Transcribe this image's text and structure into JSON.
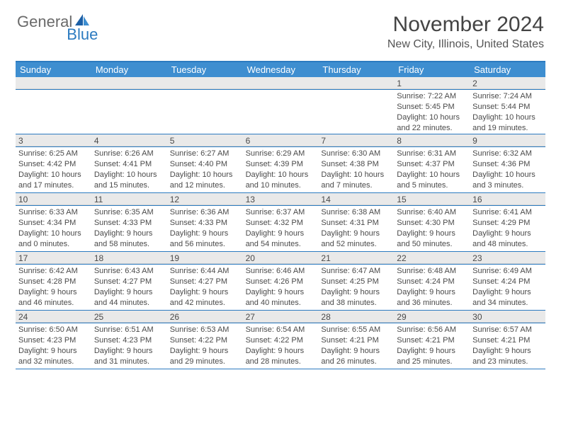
{
  "logo": {
    "part1": "General",
    "part2": "Blue"
  },
  "title": "November 2024",
  "location": "New City, Illinois, United States",
  "colors": {
    "header_bg": "#3e8ed0",
    "border": "#2c7bc0",
    "date_bg": "#e9e9e9",
    "text": "#4a4a4a",
    "logo_gray": "#6a6a6a",
    "logo_blue": "#2c7bc0"
  },
  "day_names": [
    "Sunday",
    "Monday",
    "Tuesday",
    "Wednesday",
    "Thursday",
    "Friday",
    "Saturday"
  ],
  "weeks": [
    [
      null,
      null,
      null,
      null,
      null,
      {
        "date": "1",
        "sunrise": "Sunrise: 7:22 AM",
        "sunset": "Sunset: 5:45 PM",
        "daylight1": "Daylight: 10 hours",
        "daylight2": "and 22 minutes."
      },
      {
        "date": "2",
        "sunrise": "Sunrise: 7:24 AM",
        "sunset": "Sunset: 5:44 PM",
        "daylight1": "Daylight: 10 hours",
        "daylight2": "and 19 minutes."
      }
    ],
    [
      {
        "date": "3",
        "sunrise": "Sunrise: 6:25 AM",
        "sunset": "Sunset: 4:42 PM",
        "daylight1": "Daylight: 10 hours",
        "daylight2": "and 17 minutes."
      },
      {
        "date": "4",
        "sunrise": "Sunrise: 6:26 AM",
        "sunset": "Sunset: 4:41 PM",
        "daylight1": "Daylight: 10 hours",
        "daylight2": "and 15 minutes."
      },
      {
        "date": "5",
        "sunrise": "Sunrise: 6:27 AM",
        "sunset": "Sunset: 4:40 PM",
        "daylight1": "Daylight: 10 hours",
        "daylight2": "and 12 minutes."
      },
      {
        "date": "6",
        "sunrise": "Sunrise: 6:29 AM",
        "sunset": "Sunset: 4:39 PM",
        "daylight1": "Daylight: 10 hours",
        "daylight2": "and 10 minutes."
      },
      {
        "date": "7",
        "sunrise": "Sunrise: 6:30 AM",
        "sunset": "Sunset: 4:38 PM",
        "daylight1": "Daylight: 10 hours",
        "daylight2": "and 7 minutes."
      },
      {
        "date": "8",
        "sunrise": "Sunrise: 6:31 AM",
        "sunset": "Sunset: 4:37 PM",
        "daylight1": "Daylight: 10 hours",
        "daylight2": "and 5 minutes."
      },
      {
        "date": "9",
        "sunrise": "Sunrise: 6:32 AM",
        "sunset": "Sunset: 4:36 PM",
        "daylight1": "Daylight: 10 hours",
        "daylight2": "and 3 minutes."
      }
    ],
    [
      {
        "date": "10",
        "sunrise": "Sunrise: 6:33 AM",
        "sunset": "Sunset: 4:34 PM",
        "daylight1": "Daylight: 10 hours",
        "daylight2": "and 0 minutes."
      },
      {
        "date": "11",
        "sunrise": "Sunrise: 6:35 AM",
        "sunset": "Sunset: 4:33 PM",
        "daylight1": "Daylight: 9 hours",
        "daylight2": "and 58 minutes."
      },
      {
        "date": "12",
        "sunrise": "Sunrise: 6:36 AM",
        "sunset": "Sunset: 4:33 PM",
        "daylight1": "Daylight: 9 hours",
        "daylight2": "and 56 minutes."
      },
      {
        "date": "13",
        "sunrise": "Sunrise: 6:37 AM",
        "sunset": "Sunset: 4:32 PM",
        "daylight1": "Daylight: 9 hours",
        "daylight2": "and 54 minutes."
      },
      {
        "date": "14",
        "sunrise": "Sunrise: 6:38 AM",
        "sunset": "Sunset: 4:31 PM",
        "daylight1": "Daylight: 9 hours",
        "daylight2": "and 52 minutes."
      },
      {
        "date": "15",
        "sunrise": "Sunrise: 6:40 AM",
        "sunset": "Sunset: 4:30 PM",
        "daylight1": "Daylight: 9 hours",
        "daylight2": "and 50 minutes."
      },
      {
        "date": "16",
        "sunrise": "Sunrise: 6:41 AM",
        "sunset": "Sunset: 4:29 PM",
        "daylight1": "Daylight: 9 hours",
        "daylight2": "and 48 minutes."
      }
    ],
    [
      {
        "date": "17",
        "sunrise": "Sunrise: 6:42 AM",
        "sunset": "Sunset: 4:28 PM",
        "daylight1": "Daylight: 9 hours",
        "daylight2": "and 46 minutes."
      },
      {
        "date": "18",
        "sunrise": "Sunrise: 6:43 AM",
        "sunset": "Sunset: 4:27 PM",
        "daylight1": "Daylight: 9 hours",
        "daylight2": "and 44 minutes."
      },
      {
        "date": "19",
        "sunrise": "Sunrise: 6:44 AM",
        "sunset": "Sunset: 4:27 PM",
        "daylight1": "Daylight: 9 hours",
        "daylight2": "and 42 minutes."
      },
      {
        "date": "20",
        "sunrise": "Sunrise: 6:46 AM",
        "sunset": "Sunset: 4:26 PM",
        "daylight1": "Daylight: 9 hours",
        "daylight2": "and 40 minutes."
      },
      {
        "date": "21",
        "sunrise": "Sunrise: 6:47 AM",
        "sunset": "Sunset: 4:25 PM",
        "daylight1": "Daylight: 9 hours",
        "daylight2": "and 38 minutes."
      },
      {
        "date": "22",
        "sunrise": "Sunrise: 6:48 AM",
        "sunset": "Sunset: 4:24 PM",
        "daylight1": "Daylight: 9 hours",
        "daylight2": "and 36 minutes."
      },
      {
        "date": "23",
        "sunrise": "Sunrise: 6:49 AM",
        "sunset": "Sunset: 4:24 PM",
        "daylight1": "Daylight: 9 hours",
        "daylight2": "and 34 minutes."
      }
    ],
    [
      {
        "date": "24",
        "sunrise": "Sunrise: 6:50 AM",
        "sunset": "Sunset: 4:23 PM",
        "daylight1": "Daylight: 9 hours",
        "daylight2": "and 32 minutes."
      },
      {
        "date": "25",
        "sunrise": "Sunrise: 6:51 AM",
        "sunset": "Sunset: 4:23 PM",
        "daylight1": "Daylight: 9 hours",
        "daylight2": "and 31 minutes."
      },
      {
        "date": "26",
        "sunrise": "Sunrise: 6:53 AM",
        "sunset": "Sunset: 4:22 PM",
        "daylight1": "Daylight: 9 hours",
        "daylight2": "and 29 minutes."
      },
      {
        "date": "27",
        "sunrise": "Sunrise: 6:54 AM",
        "sunset": "Sunset: 4:22 PM",
        "daylight1": "Daylight: 9 hours",
        "daylight2": "and 28 minutes."
      },
      {
        "date": "28",
        "sunrise": "Sunrise: 6:55 AM",
        "sunset": "Sunset: 4:21 PM",
        "daylight1": "Daylight: 9 hours",
        "daylight2": "and 26 minutes."
      },
      {
        "date": "29",
        "sunrise": "Sunrise: 6:56 AM",
        "sunset": "Sunset: 4:21 PM",
        "daylight1": "Daylight: 9 hours",
        "daylight2": "and 25 minutes."
      },
      {
        "date": "30",
        "sunrise": "Sunrise: 6:57 AM",
        "sunset": "Sunset: 4:21 PM",
        "daylight1": "Daylight: 9 hours",
        "daylight2": "and 23 minutes."
      }
    ]
  ]
}
